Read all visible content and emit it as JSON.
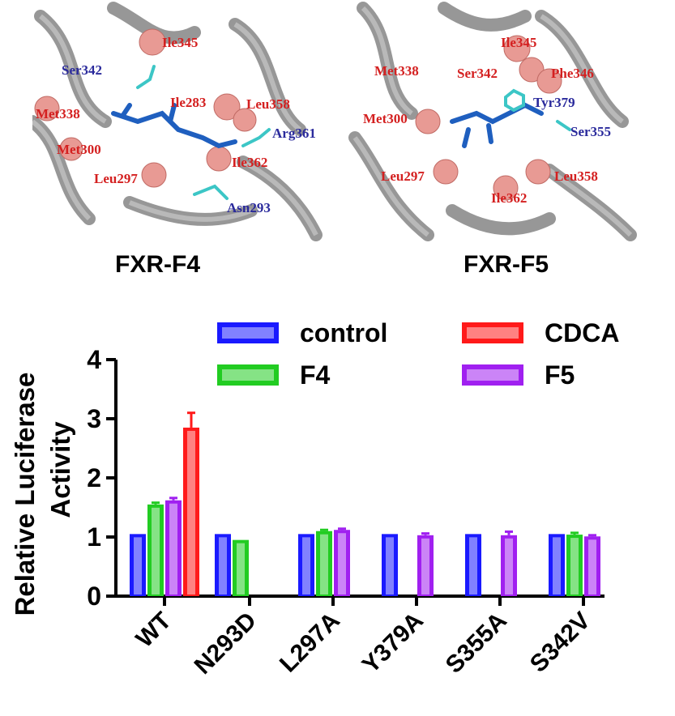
{
  "structures": [
    {
      "label": "FXR-F4",
      "residues": [
        {
          "name": "Ile345",
          "color": "red"
        },
        {
          "name": "Ser342",
          "color": "blue"
        },
        {
          "name": "Ile283",
          "color": "red"
        },
        {
          "name": "Leu358",
          "color": "red"
        },
        {
          "name": "Met338",
          "color": "red"
        },
        {
          "name": "Arg361",
          "color": "blue"
        },
        {
          "name": "Met300",
          "color": "red"
        },
        {
          "name": "Ile362",
          "color": "red"
        },
        {
          "name": "Leu297",
          "color": "red"
        },
        {
          "name": "Asn293",
          "color": "blue"
        }
      ]
    },
    {
      "label": "FXR-F5",
      "residues": [
        {
          "name": "Ile345",
          "color": "red"
        },
        {
          "name": "Met338",
          "color": "red"
        },
        {
          "name": "Ser342",
          "color": "red"
        },
        {
          "name": "Phe346",
          "color": "red"
        },
        {
          "name": "Tyr379",
          "color": "blue"
        },
        {
          "name": "Met300",
          "color": "red"
        },
        {
          "name": "Ser355",
          "color": "blue"
        },
        {
          "name": "Leu297",
          "color": "red"
        },
        {
          "name": "Leu358",
          "color": "red"
        },
        {
          "name": "Ile362",
          "color": "red"
        }
      ]
    }
  ],
  "chart_data": {
    "type": "bar",
    "ylabel": "Relative Luciferase Activity",
    "xlabel": "",
    "ylim": [
      0,
      4
    ],
    "yticks": [
      "0",
      "1",
      "2",
      "3",
      "4"
    ],
    "categories": [
      "WT",
      "N293D",
      "L297A",
      "Y379A",
      "S355A",
      "S342V"
    ],
    "series": [
      {
        "name": "control",
        "color": "#1a1aff",
        "values": [
          1.05,
          1.05,
          1.05,
          1.05,
          1.05,
          1.05
        ]
      },
      {
        "name": "F4",
        "color": "#22cc22",
        "values": [
          1.55,
          0.95,
          1.1,
          null,
          null,
          1.04
        ]
      },
      {
        "name": "F5",
        "color": "#a020f0",
        "values": [
          1.62,
          null,
          1.12,
          1.03,
          1.03,
          1.01
        ]
      },
      {
        "name": "CDCA",
        "color": "#ff1a1a",
        "values": [
          2.85,
          null,
          null,
          null,
          null,
          null
        ]
      }
    ],
    "errors": {
      "control": [
        0,
        0,
        0,
        0,
        0,
        0
      ],
      "F4": [
        0.03,
        0,
        0.02,
        null,
        null,
        0.03
      ],
      "F5": [
        0.04,
        null,
        0.02,
        0.03,
        0.06,
        0.02
      ],
      "CDCA": [
        0.25,
        null,
        null,
        null,
        null,
        null
      ]
    },
    "legend": "top",
    "grid": false
  }
}
